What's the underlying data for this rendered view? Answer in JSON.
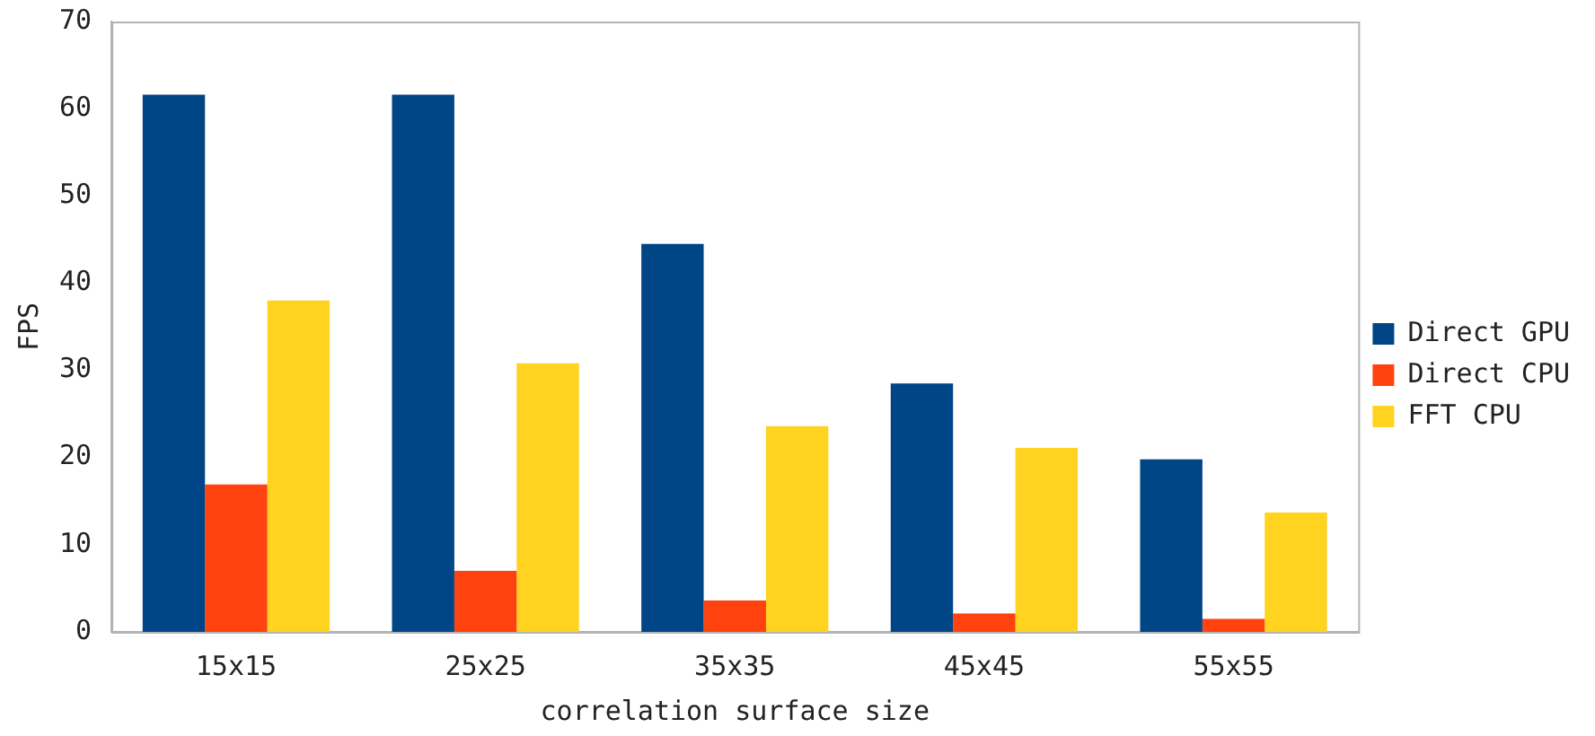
{
  "chart_data": {
    "type": "bar",
    "xlabel": "correlation surface size",
    "ylabel": "FPS",
    "categories": [
      "15x15",
      "25x25",
      "35x35",
      "45x45",
      "55x55"
    ],
    "series": [
      {
        "name": "Direct GPU",
        "color": "#004586",
        "values": [
          61.6,
          61.6,
          44.5,
          28.5,
          19.8
        ]
      },
      {
        "name": "Direct CPU",
        "color": "#ff420e",
        "values": [
          16.9,
          7.0,
          3.6,
          2.1,
          1.5
        ]
      },
      {
        "name": "FFT CPU",
        "color": "#ffd320",
        "values": [
          38.0,
          30.8,
          23.6,
          21.1,
          13.7
        ]
      }
    ],
    "ylim": [
      0,
      70
    ],
    "yticks": [
      0,
      10,
      20,
      30,
      40,
      50,
      60,
      70
    ],
    "grid": false,
    "legend": "right"
  }
}
